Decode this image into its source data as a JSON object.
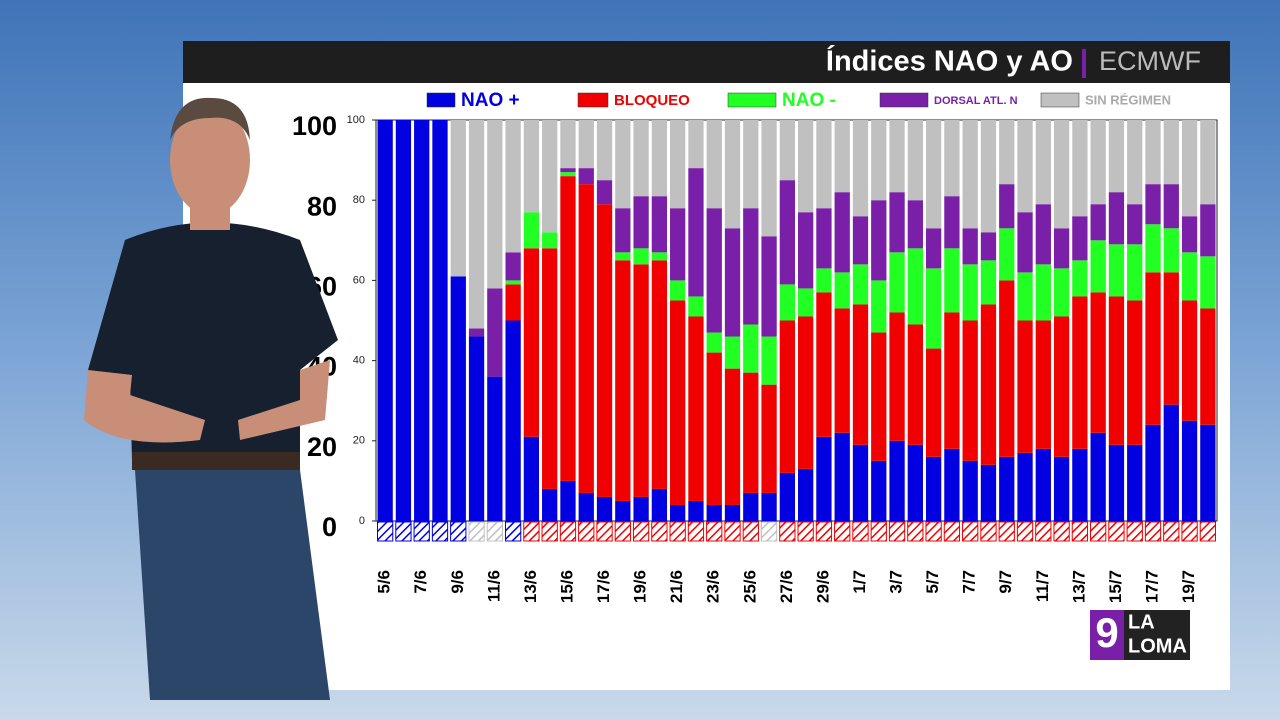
{
  "title": "Índices NAO y AO",
  "source": "ECMWF",
  "logo": {
    "number": "9",
    "line1": "LA",
    "line2": "LOMA"
  },
  "chart_data": {
    "type": "stacked-bar",
    "categories": [
      "5/6",
      null,
      "7/6",
      null,
      "9/6",
      null,
      "11/6",
      null,
      "13/6",
      null,
      "15/6",
      null,
      "17/6",
      null,
      "19/6",
      null,
      "21/6",
      null,
      "23/6",
      null,
      "25/6",
      null,
      "27/6",
      null,
      "29/6",
      null,
      "1/7",
      null,
      "3/7",
      null,
      "5/7",
      null,
      "7/7",
      null,
      "9/7",
      null,
      "11/7",
      null,
      "13/7",
      null,
      "15/7",
      null,
      "17/7",
      null,
      "19/7",
      null
    ],
    "series": [
      {
        "name": "NAO +",
        "color": "#0000e0",
        "values": [
          100,
          100,
          100,
          100,
          61,
          46,
          36,
          50,
          21,
          8,
          10,
          7,
          6,
          5,
          6,
          8,
          4,
          5,
          4,
          4,
          7,
          7,
          12,
          13,
          21,
          22,
          19,
          15,
          20,
          19,
          16,
          18,
          15,
          14,
          16,
          17,
          18,
          16,
          18,
          22,
          19,
          19,
          24,
          29,
          25,
          24
        ]
      },
      {
        "name": "BLOQUEO",
        "color": "#f00000",
        "values": [
          0,
          0,
          0,
          0,
          0,
          0,
          0,
          9,
          47,
          60,
          76,
          77,
          73,
          60,
          58,
          57,
          51,
          46,
          38,
          34,
          30,
          27,
          38,
          38,
          36,
          31,
          35,
          32,
          32,
          30,
          27,
          34,
          35,
          40,
          44,
          33,
          32,
          35,
          38,
          35,
          37,
          36,
          38,
          33,
          30,
          29
        ]
      },
      {
        "name": "NAO -",
        "color": "#22ff22",
        "values": [
          0,
          0,
          0,
          0,
          0,
          0,
          0,
          1,
          9,
          4,
          1,
          0,
          0,
          2,
          4,
          2,
          5,
          5,
          5,
          8,
          12,
          12,
          9,
          7,
          6,
          9,
          10,
          13,
          15,
          19,
          20,
          16,
          14,
          11,
          13,
          12,
          14,
          12,
          9,
          13,
          13,
          14,
          12,
          11,
          12,
          13
        ]
      },
      {
        "name": "DORSAL ATL. N",
        "color": "#7a1fa8",
        "values": [
          0,
          0,
          0,
          0,
          0,
          2,
          22,
          7,
          0,
          0,
          1,
          4,
          6,
          11,
          13,
          14,
          18,
          32,
          31,
          27,
          29,
          25,
          26,
          19,
          15,
          20,
          12,
          20,
          15,
          12,
          10,
          13,
          9,
          7,
          11,
          15,
          15,
          10,
          11,
          9,
          13,
          10,
          10,
          11,
          9,
          13
        ]
      },
      {
        "name": "SIN RÉGIMEN",
        "color": "#c0c0c0",
        "values": [
          0,
          0,
          0,
          0,
          39,
          52,
          42,
          33,
          23,
          28,
          12,
          12,
          15,
          22,
          19,
          19,
          22,
          12,
          22,
          27,
          22,
          29,
          15,
          23,
          22,
          18,
          24,
          20,
          18,
          20,
          27,
          19,
          27,
          28,
          16,
          23,
          21,
          27,
          24,
          21,
          18,
          21,
          16,
          16,
          24,
          21
        ]
      }
    ],
    "ylim": [
      0,
      100
    ],
    "yticks": [
      0,
      20,
      40,
      60,
      80,
      100
    ]
  }
}
